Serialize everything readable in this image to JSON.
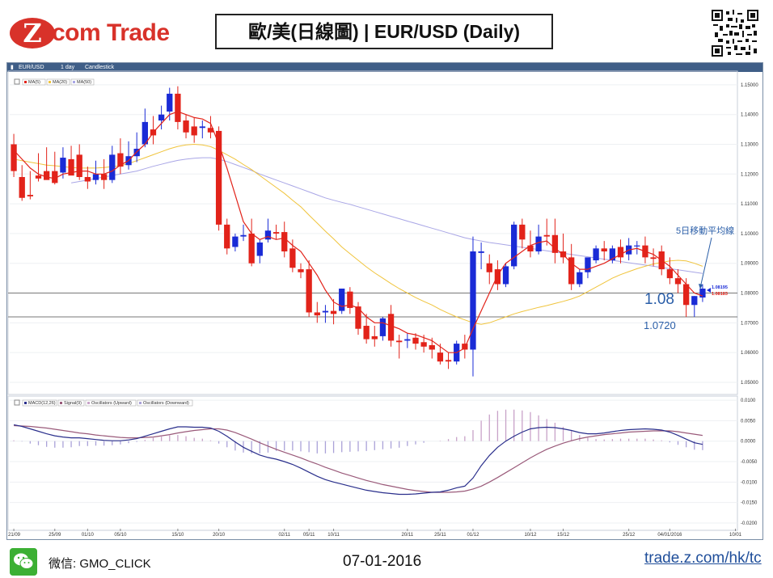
{
  "header": {
    "logo_mark": "Z",
    "logo_text": "com Trade",
    "title": "歐/美(日線圖) | EUR/USD (Daily)"
  },
  "chart_toolbar": {
    "symbol": "EUR/USD",
    "timeframe": "1 day",
    "chart_style": "Candlestick"
  },
  "chart_data": [
    {
      "type": "candlestick",
      "legend": [
        "MA(5)",
        "MA(20)",
        "MA(50)"
      ],
      "colors": {
        "up": "#1a2bd6",
        "down": "#e2231a",
        "ma5": "#e2231a",
        "ma20": "#f0c43c",
        "ma50": "#a9a6e6"
      },
      "yticks": [
        "1.15000",
        "1.14000",
        "1.13000",
        "1.12000",
        "1.11000",
        "1.10000",
        "1.09000",
        "1.08000",
        "1.07000",
        "1.06000",
        "1.05000"
      ],
      "ylim": [
        1.047,
        1.1535
      ],
      "xticks": [
        "21/09",
        "25/09",
        "01/10",
        "05/10",
        "15/10",
        "20/10",
        "02/11",
        "05/11",
        "10/11",
        "20/11",
        "25/11",
        "01/12",
        "10/12",
        "15/12",
        "25/12",
        "04/01/2016",
        "10/01"
      ],
      "candles": [
        [
          1.13,
          1.1335,
          1.121,
          1.119
        ],
        [
          1.119,
          1.123,
          1.112,
          1.111
        ],
        [
          1.113,
          1.121,
          1.1125,
          1.1115
        ],
        [
          1.1195,
          1.127,
          1.1185,
          1.1175
        ],
        [
          1.121,
          1.129,
          1.118,
          1.1205
        ],
        [
          1.121,
          1.1275,
          1.117,
          1.1165
        ],
        [
          1.1205,
          1.129,
          1.1255,
          1.1185
        ],
        [
          1.125,
          1.1295,
          1.1195,
          1.124
        ],
        [
          1.1265,
          1.13,
          1.119,
          1.118
        ],
        [
          1.119,
          1.1225,
          1.1175,
          1.115
        ],
        [
          1.118,
          1.1245,
          1.12,
          1.1165
        ],
        [
          1.12,
          1.125,
          1.118,
          1.115
        ],
        [
          1.118,
          1.1295,
          1.1265,
          1.117
        ],
        [
          1.127,
          1.132,
          1.1225,
          1.12
        ],
        [
          1.123,
          1.131,
          1.126,
          1.1215
        ],
        [
          1.126,
          1.134,
          1.1285,
          1.124
        ],
        [
          1.13,
          1.142,
          1.1375,
          1.129
        ],
        [
          1.135,
          1.1395,
          1.133,
          1.13
        ],
        [
          1.138,
          1.143,
          1.14,
          1.135
        ],
        [
          1.141,
          1.149,
          1.147,
          1.138
        ],
        [
          1.147,
          1.1495,
          1.1375,
          1.135
        ],
        [
          1.138,
          1.14,
          1.134,
          1.132
        ],
        [
          1.136,
          1.139,
          1.133,
          1.1305
        ],
        [
          1.1355,
          1.138,
          1.136,
          1.132
        ],
        [
          1.1355,
          1.1395,
          1.134,
          1.132
        ],
        [
          1.1345,
          1.136,
          1.103,
          1.101
        ],
        [
          1.103,
          1.105,
          1.095,
          1.093
        ],
        [
          1.0955,
          1.1,
          1.099,
          1.094
        ],
        [
          1.099,
          1.103,
          1.0995,
          1.0975
        ],
        [
          1.1,
          1.105,
          1.09,
          1.089
        ],
        [
          1.0925,
          1.098,
          1.097,
          1.09
        ],
        [
          1.098,
          1.105,
          1.101,
          1.097
        ],
        [
          1.1005,
          1.103,
          1.1,
          1.098
        ],
        [
          1.1005,
          1.104,
          1.094,
          1.092
        ],
        [
          1.095,
          1.098,
          1.0885,
          1.087
        ],
        [
          1.088,
          1.09,
          1.087,
          1.085
        ],
        [
          1.088,
          1.091,
          1.0735,
          1.072
        ],
        [
          1.0735,
          1.077,
          1.0725,
          1.07
        ],
        [
          1.0735,
          1.076,
          1.074,
          1.07
        ],
        [
          1.074,
          1.078,
          1.073,
          1.0695
        ],
        [
          1.074,
          1.0815,
          1.0815,
          1.073
        ],
        [
          1.0805,
          1.082,
          1.075,
          1.073
        ],
        [
          1.0755,
          1.077,
          1.068,
          1.066
        ],
        [
          1.069,
          1.073,
          1.0645,
          1.063
        ],
        [
          1.0655,
          1.069,
          1.0645,
          1.062
        ],
        [
          1.0655,
          1.072,
          1.0715,
          1.064
        ],
        [
          1.073,
          1.076,
          1.064,
          1.062
        ],
        [
          1.064,
          1.066,
          1.0635,
          1.058
        ],
        [
          1.064,
          1.0665,
          1.0645,
          1.0615
        ],
        [
          1.065,
          1.0665,
          1.063,
          1.061
        ],
        [
          1.0635,
          1.066,
          1.062,
          1.06
        ],
        [
          1.0625,
          1.065,
          1.061,
          1.058
        ],
        [
          1.06,
          1.063,
          1.057,
          1.056
        ],
        [
          1.0575,
          1.06,
          1.057,
          1.0545
        ],
        [
          1.057,
          1.064,
          1.063,
          1.056
        ],
        [
          1.063,
          1.066,
          1.061,
          1.058
        ],
        [
          1.061,
          1.099,
          1.094,
          1.052
        ],
        [
          1.0935,
          1.097,
          1.094,
          1.088
        ],
        [
          1.09,
          1.093,
          1.087,
          1.083
        ],
        [
          1.088,
          1.091,
          1.083,
          1.081
        ],
        [
          1.083,
          1.09,
          1.089,
          1.082
        ],
        [
          1.089,
          1.104,
          1.103,
          1.088
        ],
        [
          1.103,
          1.105,
          1.098,
          1.095
        ],
        [
          1.096,
          1.101,
          1.094,
          1.092
        ],
        [
          1.094,
          1.103,
          1.099,
          1.093
        ],
        [
          1.0995,
          1.105,
          1.099,
          1.096
        ],
        [
          1.0995,
          1.105,
          1.0935,
          1.09
        ],
        [
          1.094,
          1.1,
          1.092,
          1.09
        ],
        [
          1.092,
          1.0965,
          1.083,
          1.081
        ],
        [
          1.083,
          1.088,
          1.087,
          1.082
        ],
        [
          1.087,
          1.091,
          1.092,
          1.085
        ],
        [
          1.091,
          1.096,
          1.095,
          1.09
        ],
        [
          1.095,
          1.0975,
          1.094,
          1.091
        ],
        [
          1.091,
          1.096,
          1.095,
          1.09
        ],
        [
          1.0955,
          1.098,
          1.092,
          1.09
        ],
        [
          1.093,
          1.0985,
          1.096,
          1.091
        ],
        [
          1.096,
          1.0975,
          1.096,
          1.093
        ],
        [
          1.096,
          1.099,
          1.092,
          1.09
        ],
        [
          1.092,
          1.095,
          1.0915,
          1.089
        ],
        [
          1.094,
          1.096,
          1.088,
          1.086
        ],
        [
          1.088,
          1.092,
          1.085,
          1.083
        ],
        [
          1.085,
          1.088,
          1.083,
          1.08
        ],
        [
          1.083,
          1.085,
          1.076,
          1.072
        ],
        [
          1.076,
          1.079,
          1.079,
          1.072
        ],
        [
          1.0785,
          1.083,
          1.0815,
          1.077
        ]
      ],
      "ma5": [
        1.128,
        1.125,
        1.122,
        1.12,
        1.119,
        1.1185,
        1.12,
        1.1205,
        1.121,
        1.121,
        1.12,
        1.12,
        1.121,
        1.123,
        1.1245,
        1.1275,
        1.13,
        1.134,
        1.137,
        1.14,
        1.141,
        1.14,
        1.139,
        1.1385,
        1.137,
        1.13,
        1.122,
        1.113,
        1.104,
        1.1,
        1.098,
        1.099,
        1.098,
        1.0985,
        1.096,
        1.094,
        1.09,
        1.086,
        1.081,
        1.077,
        1.0755,
        1.076,
        1.075,
        1.072,
        1.07,
        1.07,
        1.069,
        1.068,
        1.0665,
        1.066,
        1.065,
        1.064,
        1.062,
        1.06,
        1.06,
        1.0615,
        1.068,
        1.074,
        1.08,
        1.086,
        1.09,
        1.092,
        1.094,
        1.096,
        1.097,
        1.0975,
        1.095,
        1.093,
        1.09,
        1.088,
        1.088,
        1.089,
        1.09,
        1.0915,
        1.093,
        1.0945,
        1.095,
        1.094,
        1.093,
        1.091,
        1.089,
        1.086,
        1.083,
        1.08,
        1.079
      ],
      "ma20": [
        1.125,
        1.1245,
        1.124,
        1.1235,
        1.123,
        1.1228,
        1.1225,
        1.1222,
        1.122,
        1.122,
        1.122,
        1.1222,
        1.1225,
        1.1228,
        1.1235,
        1.1245,
        1.1255,
        1.1265,
        1.1275,
        1.1285,
        1.1293,
        1.1298,
        1.13,
        1.1298,
        1.1292,
        1.128,
        1.1265,
        1.125,
        1.1232,
        1.1215,
        1.1195,
        1.1175,
        1.1155,
        1.1135,
        1.1112,
        1.109,
        1.1062,
        1.1035,
        1.1008,
        1.0982,
        1.0955,
        1.0932,
        1.091,
        1.0888,
        1.0868,
        1.085,
        1.0832,
        1.0815,
        1.08,
        1.0785,
        1.0772,
        1.076,
        1.0745,
        1.0732,
        1.072,
        1.071,
        1.07,
        1.0695,
        1.07,
        1.071,
        1.072,
        1.073,
        1.0738,
        1.0745,
        1.0752,
        1.0758,
        1.0765,
        1.0772,
        1.078,
        1.079,
        1.0805,
        1.082,
        1.0835,
        1.085,
        1.0862,
        1.0872,
        1.0882,
        1.089,
        1.0898,
        1.0903,
        1.0908,
        1.091,
        1.0908,
        1.09,
        1.089
      ],
      "ma50": [
        null,
        null,
        null,
        null,
        null,
        null,
        null,
        1.117,
        1.1175,
        1.118,
        1.1185,
        1.119,
        1.1195,
        1.12,
        1.1205,
        1.121,
        1.1218,
        1.1226,
        1.1233,
        1.124,
        1.1246,
        1.125,
        1.1253,
        1.1255,
        1.1255,
        1.125,
        1.1242,
        1.1232,
        1.1222,
        1.1212,
        1.12,
        1.119,
        1.118,
        1.117,
        1.116,
        1.115,
        1.114,
        1.113,
        1.112,
        1.1112,
        1.1105,
        1.1098,
        1.109,
        1.1082,
        1.1074,
        1.1066,
        1.1058,
        1.105,
        1.1042,
        1.1034,
        1.1026,
        1.1018,
        1.101,
        1.1002,
        1.0994,
        1.0986,
        1.098,
        1.0975,
        1.097,
        1.0966,
        1.0962,
        1.0958,
        1.0954,
        1.095,
        1.0946,
        1.0942,
        1.0938,
        1.0934,
        1.093,
        1.0926,
        1.0922,
        1.0918,
        1.0914,
        1.091,
        1.0906,
        1.0902,
        1.0898,
        1.0894,
        1.089,
        1.0886,
        1.0882,
        1.0878,
        1.0874,
        1.087,
        1.0866
      ],
      "last_price_labels": [
        "1.08195",
        "1.08183"
      ],
      "annotations": {
        "ma5_note": "5日移動平均線",
        "level_1": "1.08",
        "level_2": "1.0720"
      },
      "horizontal_lines": [
        1.08,
        1.072
      ]
    },
    {
      "type": "macd",
      "legend": [
        "MACD(12,26)",
        "Signal(9)",
        "Oscillators (Upward)",
        "Oscillators (Downward)"
      ],
      "colors": {
        "macd": "#2a2f8c",
        "signal": "#9a5a7a",
        "hist_up": "#c8a2c8",
        "hist_down": "#aaa2d8"
      },
      "yticks": [
        "0.0100",
        "0.0050",
        "0.0000",
        "-0.0050",
        "-0.0100",
        "-0.0150",
        "-0.0200"
      ],
      "ylim": [
        -0.021,
        0.011
      ],
      "macd": [
        0.004,
        0.0036,
        0.003,
        0.0024,
        0.0018,
        0.0013,
        0.001,
        0.0008,
        0.0008,
        0.0006,
        0.0004,
        0.0002,
        0.0001,
        0.0001,
        0.0003,
        0.0006,
        0.0012,
        0.0018,
        0.0024,
        0.003,
        0.0035,
        0.0035,
        0.0034,
        0.0034,
        0.0032,
        0.0024,
        0.0012,
        -0.0002,
        -0.0015,
        -0.0025,
        -0.0034,
        -0.004,
        -0.0044,
        -0.005,
        -0.0057,
        -0.0066,
        -0.0076,
        -0.0086,
        -0.0094,
        -0.01,
        -0.0105,
        -0.011,
        -0.0115,
        -0.012,
        -0.0123,
        -0.0126,
        -0.0128,
        -0.013,
        -0.013,
        -0.0129,
        -0.0127,
        -0.0125,
        -0.0124,
        -0.012,
        -0.0114,
        -0.011,
        -0.009,
        -0.006,
        -0.0035,
        -0.0015,
        0.0,
        0.0012,
        0.0022,
        0.003,
        0.0033,
        0.0034,
        0.0033,
        0.003,
        0.0026,
        0.0021,
        0.0018,
        0.0018,
        0.002,
        0.0023,
        0.0026,
        0.0028,
        0.0029,
        0.003,
        0.0029,
        0.0027,
        0.0022,
        0.0014,
        0.0005,
        -0.0004,
        -0.0008
      ],
      "signal": [
        0.0038,
        0.0037,
        0.0036,
        0.0034,
        0.0032,
        0.0029,
        0.0026,
        0.0023,
        0.002,
        0.0018,
        0.0015,
        0.0013,
        0.0011,
        0.0009,
        0.0008,
        0.0008,
        0.0009,
        0.001,
        0.0013,
        0.0016,
        0.002,
        0.0023,
        0.0026,
        0.0028,
        0.003,
        0.003,
        0.0027,
        0.0021,
        0.0013,
        0.0005,
        -0.0004,
        -0.0012,
        -0.002,
        -0.0027,
        -0.0034,
        -0.0041,
        -0.0049,
        -0.0056,
        -0.0064,
        -0.0071,
        -0.0078,
        -0.0084,
        -0.009,
        -0.0096,
        -0.0101,
        -0.0106,
        -0.011,
        -0.0114,
        -0.0118,
        -0.0121,
        -0.0123,
        -0.0125,
        -0.0125,
        -0.0125,
        -0.0124,
        -0.0122,
        -0.0117,
        -0.011,
        -0.01,
        -0.0089,
        -0.0077,
        -0.0065,
        -0.0053,
        -0.0041,
        -0.003,
        -0.002,
        -0.0012,
        -0.0005,
        0.0001,
        0.0006,
        0.001,
        0.0013,
        0.0016,
        0.0018,
        0.002,
        0.0022,
        0.0023,
        0.0024,
        0.0025,
        0.0025,
        0.0025,
        0.0023,
        0.002,
        0.0017,
        0.0014
      ],
      "histogram": [
        0.0002,
        -0.0001,
        -0.0006,
        -0.001,
        -0.0014,
        -0.0016,
        -0.0016,
        -0.0015,
        -0.0012,
        -0.0012,
        -0.0011,
        -0.0011,
        -0.001,
        -0.0008,
        -0.0005,
        -0.0002,
        0.0003,
        0.0008,
        0.0011,
        0.0014,
        0.0015,
        0.0012,
        0.0008,
        0.0006,
        0.0002,
        -0.0006,
        -0.0015,
        -0.0023,
        -0.0028,
        -0.003,
        -0.003,
        -0.0028,
        -0.0024,
        -0.0023,
        -0.0023,
        -0.0025,
        -0.0027,
        -0.003,
        -0.003,
        -0.0029,
        -0.0027,
        -0.0026,
        -0.0025,
        -0.0024,
        -0.0022,
        -0.002,
        -0.0018,
        -0.0016,
        -0.0012,
        -0.0008,
        -0.0004,
        0.0,
        0.0001,
        0.0005,
        0.001,
        0.0012,
        0.0027,
        0.005,
        0.0065,
        0.0074,
        0.0077,
        0.0077,
        0.0075,
        0.0071,
        0.0063,
        0.0054,
        0.0045,
        0.0035,
        0.0025,
        0.0015,
        0.0008,
        0.0005,
        0.0004,
        0.0005,
        0.0006,
        0.0006,
        0.0006,
        0.0006,
        0.0004,
        0.0002,
        -0.0003,
        -0.0009,
        -0.0015,
        -0.0021,
        -0.0022
      ]
    }
  ],
  "footer": {
    "wechat_label": "微信: GMO_CLICK",
    "date": "07-01-2016",
    "url": "trade.z.com/hk/tc"
  }
}
